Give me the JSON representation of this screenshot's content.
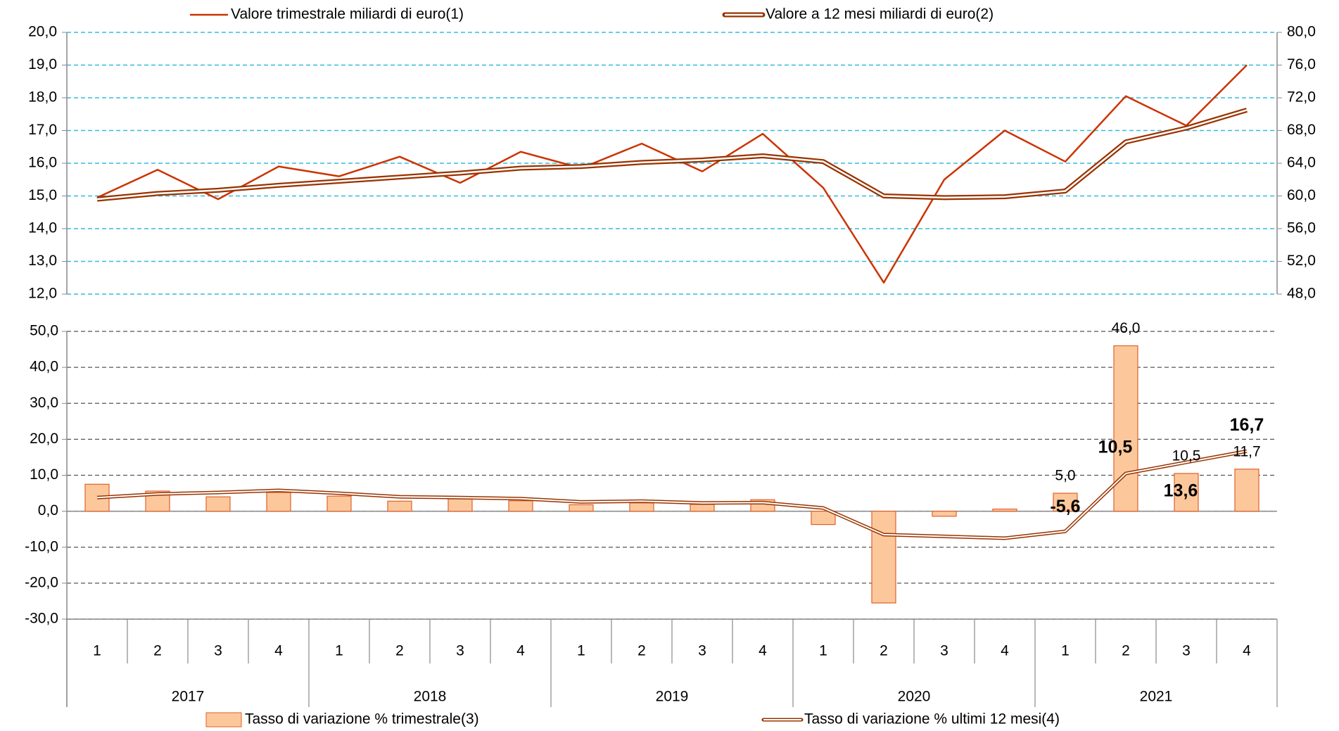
{
  "chart_data": [
    {
      "type": "line",
      "series": [
        {
          "name": "Valore trimestrale miliardi di euro(1)",
          "color": "#cc3300",
          "values": [
            14.95,
            15.8,
            14.9,
            15.9,
            15.6,
            16.2,
            15.4,
            16.35,
            15.85,
            16.6,
            15.75,
            16.9,
            15.25,
            12.35,
            15.5,
            17.0,
            16.05,
            18.05,
            17.15,
            19.0
          ]
        },
        {
          "name": "Valore a 12 mesi miliardi di euro(2)",
          "color": "#993300",
          "axis": "y2",
          "values": [
            59.6,
            60.3,
            60.7,
            61.3,
            61.8,
            62.3,
            62.8,
            63.4,
            63.6,
            64.1,
            64.4,
            64.9,
            64.2,
            60.0,
            59.8,
            59.9,
            60.6,
            66.6,
            68.3,
            70.5
          ]
        }
      ],
      "ylim": [
        12,
        20
      ],
      "yticks": [
        {
          "value": 12,
          "label": "12,0"
        },
        {
          "value": 13,
          "label": "13,0"
        },
        {
          "value": 14,
          "label": "14,0"
        },
        {
          "value": 15,
          "label": "15,0"
        },
        {
          "value": 16,
          "label": "16,0"
        },
        {
          "value": 17,
          "label": "17,0"
        },
        {
          "value": 18,
          "label": "18,0"
        },
        {
          "value": 19,
          "label": "19,0"
        },
        {
          "value": 20,
          "label": "20,0"
        }
      ],
      "y2lim": [
        48,
        80
      ],
      "y2ticks": [
        {
          "value": 48,
          "label": "48,0"
        },
        {
          "value": 52,
          "label": "52,0"
        },
        {
          "value": 56,
          "label": "56,0"
        },
        {
          "value": 60,
          "label": "60,0"
        },
        {
          "value": 64,
          "label": "64,0"
        },
        {
          "value": 68,
          "label": "68,0"
        },
        {
          "value": 72,
          "label": "72,0"
        },
        {
          "value": 76,
          "label": "76,0"
        },
        {
          "value": 80,
          "label": "80,0"
        }
      ],
      "ytick_color": "#e00000",
      "y2tick_color": "#c00040",
      "grid": true,
      "grid_color": "#33bbdd",
      "legend": "top"
    },
    {
      "type": "bar",
      "categories": [
        "1",
        "2",
        "3",
        "4",
        "1",
        "2",
        "3",
        "4",
        "1",
        "2",
        "3",
        "4",
        "1",
        "2",
        "3",
        "4",
        "1",
        "2",
        "3",
        "4"
      ],
      "years": [
        "2017",
        "2018",
        "2019",
        "2020",
        "2021"
      ],
      "series": [
        {
          "name": "Tasso di variazione % trimestrale(3)",
          "type": "bar",
          "color": "#fcc89b",
          "edge_color": "#e0602a",
          "label_color": "#1f1f7a",
          "values": [
            7.5,
            5.6,
            4.0,
            5.2,
            4.2,
            2.8,
            3.8,
            2.9,
            1.8,
            2.3,
            1.9,
            3.2,
            -3.7,
            -25.5,
            -1.4,
            0.6,
            5.0,
            46.0,
            10.5,
            11.7
          ],
          "value_labels": [
            null,
            null,
            null,
            null,
            null,
            null,
            null,
            null,
            null,
            null,
            null,
            null,
            null,
            null,
            null,
            null,
            "5,0",
            "46,0",
            "10,5",
            "11,7"
          ]
        },
        {
          "name": "Tasso di variazione % ultimi 12 mesi(4)",
          "type": "line",
          "color": "#993300",
          "label_color": "#993300",
          "values": [
            3.8,
            4.8,
            5.2,
            5.8,
            5.0,
            4.0,
            3.8,
            3.5,
            2.6,
            2.8,
            2.3,
            2.4,
            0.9,
            -6.5,
            -7.0,
            -7.5,
            -5.6,
            10.5,
            13.6,
            16.7
          ],
          "value_labels": [
            null,
            null,
            null,
            null,
            null,
            null,
            null,
            null,
            null,
            null,
            null,
            null,
            null,
            null,
            null,
            null,
            "-5,6",
            "10,5",
            "13,6",
            "16,7"
          ]
        }
      ],
      "ylim": [
        -30,
        50
      ],
      "yticks": [
        {
          "value": -30,
          "label": "-30,0"
        },
        {
          "value": -20,
          "label": "-20,0"
        },
        {
          "value": -10,
          "label": "-10,0"
        },
        {
          "value": 0,
          "label": "0,0"
        },
        {
          "value": 10,
          "label": "10,0"
        },
        {
          "value": 20,
          "label": "20,0"
        },
        {
          "value": 30,
          "label": "30,0"
        },
        {
          "value": 40,
          "label": "40,0"
        },
        {
          "value": 50,
          "label": "50,0"
        }
      ],
      "negative_color": "#ff0000",
      "grid": true,
      "grid_color": "#555555",
      "legend": "bottom"
    }
  ]
}
